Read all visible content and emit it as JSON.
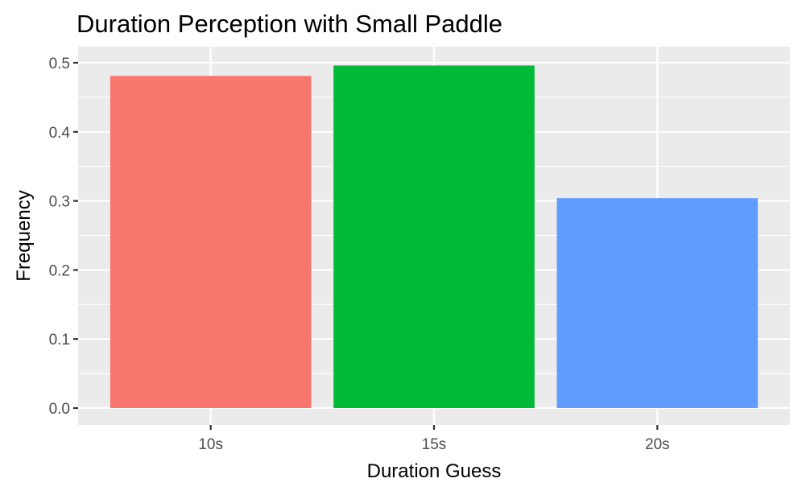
{
  "chart_data": {
    "type": "bar",
    "title": "Duration Perception with Small Paddle",
    "xlabel": "Duration Guess",
    "ylabel": "Frequency",
    "categories": [
      "10s",
      "15s",
      "20s"
    ],
    "values": [
      0.481,
      0.496,
      0.304
    ],
    "colors": [
      "#F8766D",
      "#00BA38",
      "#619CFF"
    ],
    "ylim": [
      0,
      0.5
    ],
    "yticks": [
      "0.0",
      "0.1",
      "0.2",
      "0.3",
      "0.4",
      "0.5"
    ],
    "grid": true,
    "legend": "none",
    "panel_background": "#EBEBEB"
  }
}
